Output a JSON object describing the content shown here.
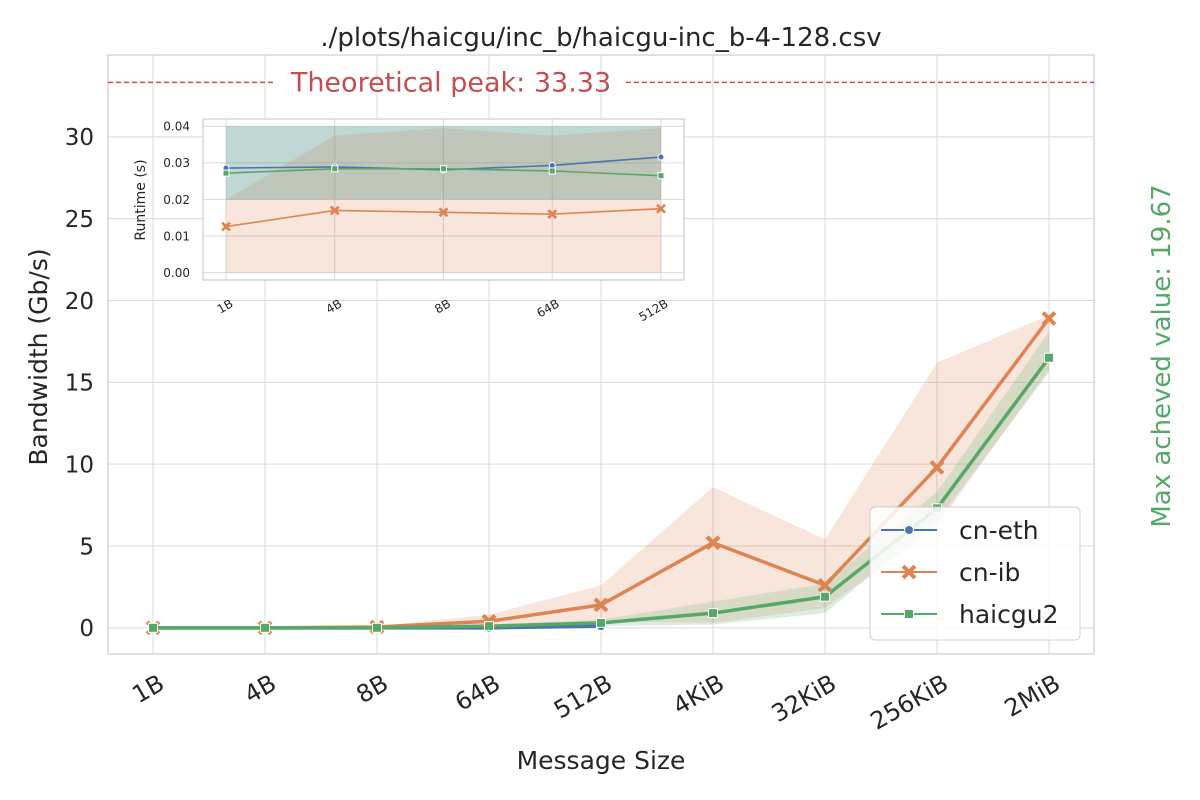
{
  "main": {
    "title": "./plots/haicgu/inc_b/haicgu-inc_b-4-128.csv",
    "xlabel": "Message Size",
    "ylabel": "Bandwidth (Gb/s)",
    "peak_label": "Theoretical peak: 33.33",
    "max_label": "Max acheved value: 19.67",
    "inset_ylabel": "Runtime (s)"
  },
  "colors": {
    "cn-eth": "#4c72b0",
    "cn-ib": "#dd8452",
    "haicgu2": "#55a868",
    "peak": "#c44e52",
    "max": "#55a868"
  },
  "chart_data": [
    {
      "type": "line",
      "title": "./plots/haicgu/inc_b/haicgu-inc_b-4-128.csv",
      "xlabel": "Message Size",
      "ylabel": "Bandwidth (Gb/s)",
      "categories": [
        "1B",
        "4B",
        "8B",
        "64B",
        "512B",
        "4KiB",
        "32KiB",
        "256KiB",
        "2MiB"
      ],
      "ylim": [
        -1.6,
        35
      ],
      "yticks": [
        0,
        5,
        10,
        15,
        20,
        25,
        30
      ],
      "grid": true,
      "legend": "right",
      "reference_line": {
        "y": 33.33,
        "label": "Theoretical peak: 33.33"
      },
      "max_value": 19.67,
      "series": [
        {
          "name": "cn-eth",
          "marker": "circle",
          "values": [
            0.0,
            0.0,
            0.0,
            0.0,
            0.1,
            null,
            null,
            null,
            null
          ]
        },
        {
          "name": "cn-ib",
          "marker": "x",
          "values": [
            0.0,
            0.0,
            0.05,
            0.4,
            1.4,
            5.2,
            2.6,
            9.8,
            18.9
          ],
          "band_lower": [
            0.0,
            0.0,
            0.0,
            0.1,
            0.4,
            0.3,
            1.2,
            6.2,
            15.8
          ],
          "band_upper": [
            0.05,
            0.05,
            0.1,
            0.8,
            2.6,
            8.6,
            5.4,
            16.2,
            19.1
          ]
        },
        {
          "name": "haicgu2",
          "marker": "square",
          "values": [
            0.0,
            0.0,
            0.0,
            0.1,
            0.3,
            0.9,
            1.9,
            7.3,
            16.5
          ],
          "band_lower": [
            0.0,
            0.0,
            0.0,
            0.0,
            0.1,
            0.2,
            0.9,
            6.5,
            15.6
          ],
          "band_upper": [
            0.0,
            0.0,
            0.0,
            0.2,
            0.5,
            1.6,
            2.7,
            8.3,
            18.1
          ]
        }
      ]
    },
    {
      "type": "line",
      "ylabel": "Runtime (s)",
      "categories": [
        "1B",
        "4B",
        "8B",
        "64B",
        "512B"
      ],
      "ylim": [
        -0.002,
        0.042
      ],
      "yticks": [
        0.0,
        0.01,
        0.02,
        0.03,
        0.04
      ],
      "ytick_labels": [
        "0.00",
        "0.01",
        "0.02",
        "0.03",
        "0.04"
      ],
      "grid": true,
      "series": [
        {
          "name": "cn-eth",
          "marker": "circle",
          "values": [
            0.0286,
            0.0289,
            0.0281,
            0.0293,
            0.0316
          ],
          "band_lower": [
            0.02,
            0.02,
            0.02,
            0.02,
            0.02
          ],
          "band_upper": [
            0.04,
            0.04,
            0.04,
            0.04,
            0.04
          ]
        },
        {
          "name": "cn-ib",
          "marker": "x",
          "values": [
            0.0126,
            0.017,
            0.0165,
            0.016,
            0.0175
          ],
          "band_lower": [
            0.0,
            0.0,
            0.0,
            0.0,
            0.0
          ],
          "band_upper": [
            0.02,
            0.0375,
            0.0395,
            0.0375,
            0.0395
          ]
        },
        {
          "name": "haicgu2",
          "marker": "square",
          "values": [
            0.0272,
            0.0284,
            0.0284,
            0.0278,
            0.0265
          ],
          "band_lower": [
            0.02,
            0.02,
            0.02,
            0.02,
            0.02
          ],
          "band_upper": [
            0.04,
            0.04,
            0.04,
            0.04,
            0.04
          ]
        }
      ]
    }
  ]
}
